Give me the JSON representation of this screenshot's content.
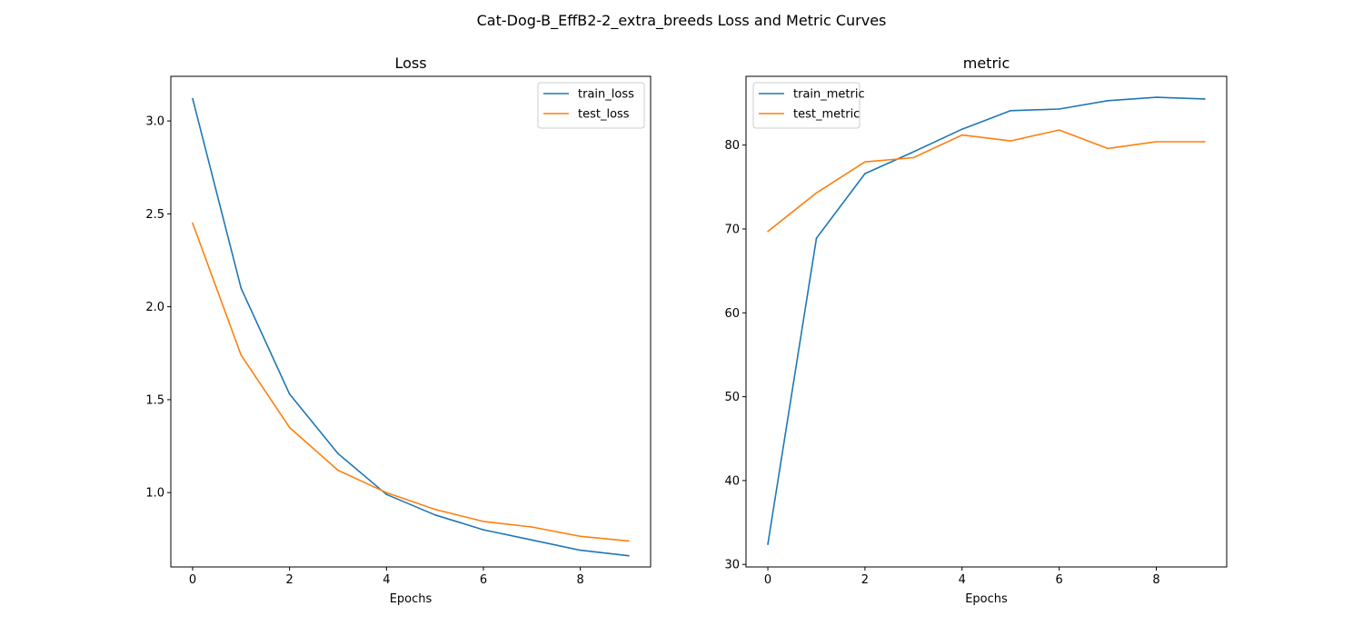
{
  "figure_title": "Cat-Dog-B_EffB2-2_extra_breeds Loss and Metric Curves",
  "chart_data": [
    {
      "type": "line",
      "title": "Loss",
      "xlabel": "Epochs",
      "ylabel": "",
      "x": [
        0,
        1,
        2,
        3,
        4,
        5,
        6,
        7,
        8,
        9
      ],
      "xlim": [
        -0.45,
        9.45
      ],
      "ylim": [
        0.6,
        3.24
      ],
      "xticks": [
        0,
        2,
        4,
        6,
        8
      ],
      "yticks": [
        1.0,
        1.5,
        2.0,
        2.5,
        3.0
      ],
      "ytick_labels": [
        "1.0",
        "1.5",
        "2.0",
        "2.5",
        "3.0"
      ],
      "legend_position": "upper right",
      "grid": false,
      "series": [
        {
          "name": "train_loss",
          "color": "#1f77b4",
          "values": [
            3.12,
            2.1,
            1.53,
            1.21,
            0.99,
            0.88,
            0.8,
            0.745,
            0.69,
            0.66
          ]
        },
        {
          "name": "test_loss",
          "color": "#ff7f0e",
          "values": [
            2.45,
            1.74,
            1.35,
            1.12,
            1.0,
            0.91,
            0.845,
            0.815,
            0.765,
            0.74
          ]
        }
      ]
    },
    {
      "type": "line",
      "title": "metric",
      "xlabel": "Epochs",
      "ylabel": "",
      "x": [
        0,
        1,
        2,
        3,
        4,
        5,
        6,
        7,
        8,
        9
      ],
      "xlim": [
        -0.45,
        9.45
      ],
      "ylim": [
        29.7,
        88.2
      ],
      "xticks": [
        0,
        2,
        4,
        6,
        8
      ],
      "yticks": [
        30,
        40,
        50,
        60,
        70,
        80
      ],
      "ytick_labels": [
        "30",
        "40",
        "50",
        "60",
        "70",
        "80"
      ],
      "legend_position": "upper left",
      "grid": false,
      "series": [
        {
          "name": "train_metric",
          "color": "#1f77b4",
          "values": [
            32.4,
            68.9,
            76.6,
            79.2,
            81.9,
            84.1,
            84.3,
            85.3,
            85.7,
            85.5
          ]
        },
        {
          "name": "test_metric",
          "color": "#ff7f0e",
          "values": [
            69.7,
            74.3,
            78.0,
            78.5,
            81.2,
            80.5,
            81.8,
            79.6,
            80.4,
            80.4
          ]
        }
      ]
    }
  ]
}
